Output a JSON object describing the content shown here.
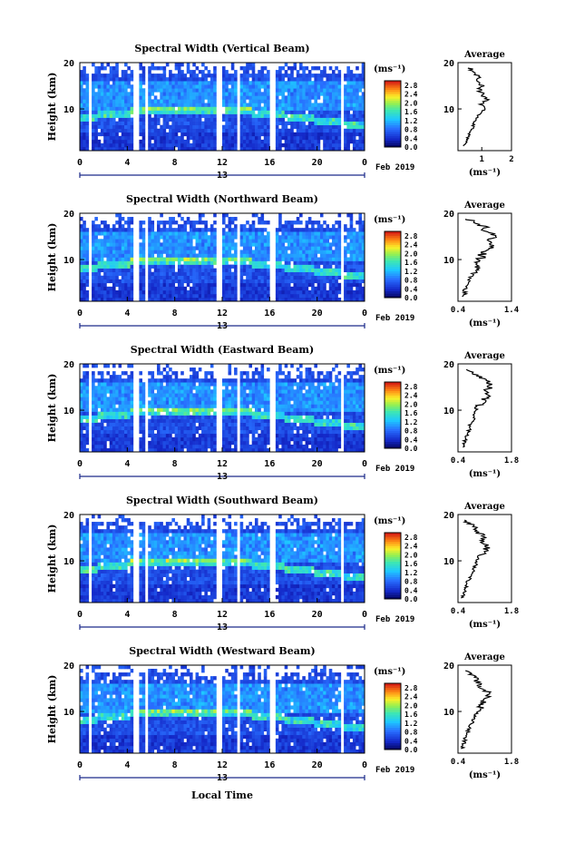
{
  "figure": {
    "bottom_label": "Local Time",
    "date_label": "Feb 2019",
    "day_marker": "13",
    "unit_label": "(ms⁻¹)",
    "avg_title": "Average"
  },
  "chart_data": [
    {
      "type": "heatmap",
      "title": "Spectral Width (Vertical Beam)",
      "ylabel": "Height (km)",
      "xlabel": "Local Time",
      "x_ticks": [
        "0",
        "4",
        "8",
        "12",
        "16",
        "20",
        "0"
      ],
      "y_ticks": [
        "20",
        "10"
      ],
      "colorbar": {
        "ticks": [
          "2.8",
          "2.4",
          "2.0",
          "1.6",
          "1.2",
          "0.8",
          "0.4",
          "0.0"
        ],
        "range": [
          0,
          3.0
        ]
      },
      "average": {
        "xlabel": "(ms⁻¹)",
        "x_ticks": [
          "1",
          "2"
        ],
        "xlim": [
          0.2,
          2.0
        ],
        "ylim": [
          1,
          20
        ],
        "heights": [
          2,
          3,
          4,
          5,
          6,
          7,
          8,
          9,
          10,
          11,
          12,
          13,
          14,
          15,
          16,
          17,
          18,
          19
        ],
        "values": [
          0.4,
          0.5,
          0.55,
          0.6,
          0.7,
          0.75,
          0.8,
          0.95,
          1.1,
          1.0,
          1.15,
          1.05,
          0.9,
          1.0,
          0.8,
          0.9,
          0.7,
          0.6
        ]
      }
    },
    {
      "type": "heatmap",
      "title": "Spectral Width (Northward Beam)",
      "ylabel": "Height (km)",
      "xlabel": "Local Time",
      "x_ticks": [
        "0",
        "4",
        "8",
        "12",
        "16",
        "20",
        "0"
      ],
      "y_ticks": [
        "20",
        "10"
      ],
      "colorbar": {
        "ticks": [
          "2.8",
          "2.4",
          "2.0",
          "1.6",
          "1.2",
          "0.8",
          "0.4",
          "0.0"
        ],
        "range": [
          0,
          3.0
        ]
      },
      "average": {
        "xlabel": "(ms⁻¹)",
        "x_ticks": [
          "0.4",
          "1.4"
        ],
        "xlim": [
          0.4,
          1.4
        ],
        "ylim": [
          1,
          20
        ],
        "heights": [
          2,
          3,
          4,
          5,
          6,
          7,
          8,
          9,
          10,
          11,
          12,
          13,
          14,
          15,
          16,
          17,
          18,
          19
        ],
        "values": [
          0.5,
          0.52,
          0.55,
          0.6,
          0.62,
          0.7,
          0.78,
          0.72,
          0.8,
          0.85,
          0.95,
          1.05,
          1.0,
          1.1,
          0.95,
          0.9,
          0.7,
          0.6
        ]
      }
    },
    {
      "type": "heatmap",
      "title": "Spectral Width (Eastward Beam)",
      "ylabel": "Height (km)",
      "xlabel": "Local Time",
      "x_ticks": [
        "0",
        "4",
        "8",
        "12",
        "16",
        "20",
        "0"
      ],
      "y_ticks": [
        "20",
        "10"
      ],
      "colorbar": {
        "ticks": [
          "2.8",
          "2.4",
          "2.0",
          "1.6",
          "1.2",
          "0.8",
          "0.4",
          "0.0"
        ],
        "range": [
          0,
          3.0
        ]
      },
      "average": {
        "xlabel": "(ms⁻¹)",
        "x_ticks": [
          "0.4",
          "1.8"
        ],
        "xlim": [
          0.4,
          1.8
        ],
        "ylim": [
          1,
          20
        ],
        "heights": [
          2,
          3,
          4,
          5,
          6,
          7,
          8,
          9,
          10,
          11,
          12,
          13,
          14,
          15,
          16,
          17,
          18,
          19
        ],
        "values": [
          0.55,
          0.58,
          0.6,
          0.65,
          0.7,
          0.72,
          0.8,
          0.78,
          0.85,
          0.95,
          1.05,
          1.15,
          1.1,
          1.25,
          1.2,
          1.0,
          0.8,
          0.65
        ]
      }
    },
    {
      "type": "heatmap",
      "title": "Spectral Width (Southward Beam)",
      "ylabel": "Height (km)",
      "xlabel": "Local Time",
      "x_ticks": [
        "0",
        "4",
        "8",
        "12",
        "16",
        "20",
        "0"
      ],
      "y_ticks": [
        "20",
        "10"
      ],
      "colorbar": {
        "ticks": [
          "2.8",
          "2.4",
          "2.0",
          "1.6",
          "1.2",
          "0.8",
          "0.4",
          "0.0"
        ],
        "range": [
          0,
          3.0
        ]
      },
      "average": {
        "xlabel": "(ms⁻¹)",
        "x_ticks": [
          "0.4",
          "1.8"
        ],
        "xlim": [
          0.4,
          1.8
        ],
        "ylim": [
          1,
          20
        ],
        "heights": [
          2,
          3,
          4,
          5,
          6,
          7,
          8,
          9,
          10,
          11,
          12,
          13,
          14,
          15,
          16,
          17,
          18,
          19
        ],
        "values": [
          0.5,
          0.55,
          0.6,
          0.62,
          0.7,
          0.75,
          0.82,
          0.85,
          0.9,
          1.0,
          1.1,
          1.15,
          1.05,
          1.1,
          0.95,
          0.85,
          0.7,
          0.6
        ]
      }
    },
    {
      "type": "heatmap",
      "title": "Spectral Width (Westward Beam)",
      "ylabel": "Height (km)",
      "xlabel": "Local Time",
      "x_ticks": [
        "0",
        "4",
        "8",
        "12",
        "16",
        "20",
        "0"
      ],
      "y_ticks": [
        "20",
        "10"
      ],
      "colorbar": {
        "ticks": [
          "2.8",
          "2.4",
          "2.0",
          "1.6",
          "1.2",
          "0.8",
          "0.4",
          "0.0"
        ],
        "range": [
          0,
          3.0
        ]
      },
      "average": {
        "xlabel": "(ms⁻¹)",
        "x_ticks": [
          "0.4",
          "1.8"
        ],
        "xlim": [
          0.4,
          1.8
        ],
        "ylim": [
          1,
          20
        ],
        "heights": [
          2,
          3,
          4,
          5,
          6,
          7,
          8,
          9,
          10,
          11,
          12,
          13,
          14,
          15,
          16,
          17,
          18,
          19
        ],
        "values": [
          0.5,
          0.55,
          0.58,
          0.62,
          0.68,
          0.72,
          0.8,
          0.85,
          0.9,
          1.0,
          1.05,
          1.15,
          1.2,
          1.05,
          0.95,
          0.85,
          0.75,
          0.6
        ]
      }
    }
  ]
}
